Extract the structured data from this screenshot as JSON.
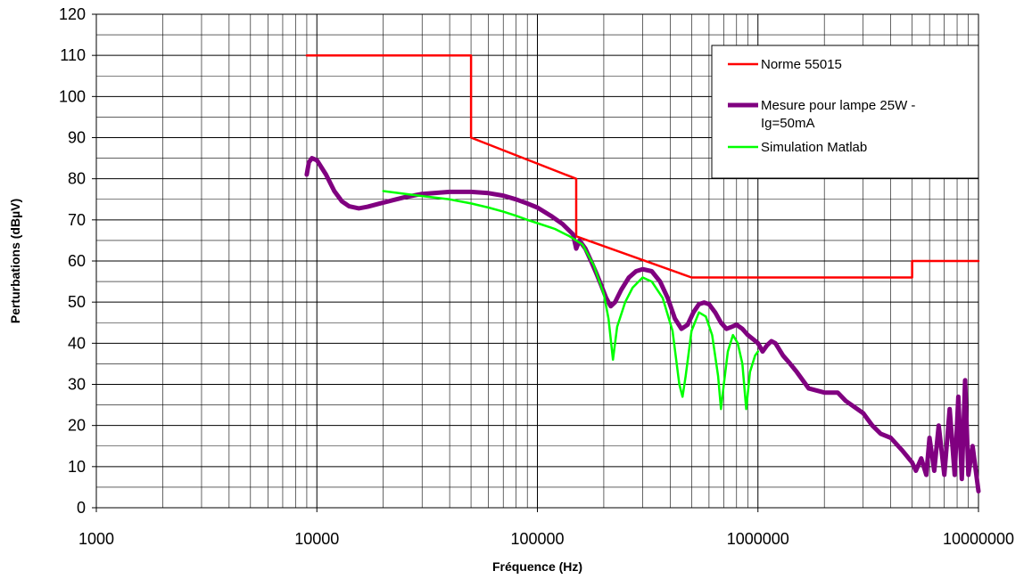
{
  "chart_data": {
    "type": "line",
    "xlabel": "Fréquence (Hz)",
    "ylabel": "Perturbations (dBµV)",
    "x_scale": "log",
    "xlim": [
      1000,
      10000000
    ],
    "ylim": [
      0,
      120
    ],
    "grid": true,
    "legend_position": "top-right",
    "x_ticks": [
      "1000",
      "10000",
      "100000",
      "1000000",
      "10000000"
    ],
    "y_ticks": [
      "0",
      "10",
      "20",
      "30",
      "40",
      "50",
      "60",
      "70",
      "80",
      "90",
      "100",
      "110",
      "120"
    ],
    "series": [
      {
        "name": "Norme 55015",
        "color": "#ff0000",
        "legend_lines": [
          "Norme 55015"
        ],
        "points": [
          [
            9000,
            110
          ],
          [
            50000,
            110
          ],
          [
            50000,
            90
          ],
          [
            150000,
            80
          ],
          [
            150000,
            66
          ],
          [
            500000,
            56
          ],
          [
            5000000,
            56
          ],
          [
            5000000,
            60
          ],
          [
            10000000,
            60
          ]
        ]
      },
      {
        "name": "Mesure pour lampe 25W - Ig=50mA",
        "color": "#800080",
        "legend_lines": [
          "Mesure pour lampe 25W -",
          "Ig=50mA"
        ],
        "points": [
          [
            9000,
            81
          ],
          [
            9200,
            84
          ],
          [
            9500,
            85
          ],
          [
            10000,
            84.5
          ],
          [
            11000,
            81
          ],
          [
            12000,
            77
          ],
          [
            13000,
            74.5
          ],
          [
            14000,
            73.3
          ],
          [
            15500,
            72.8
          ],
          [
            17000,
            73.2
          ],
          [
            20000,
            74.2
          ],
          [
            25000,
            75.5
          ],
          [
            30000,
            76.3
          ],
          [
            40000,
            76.8
          ],
          [
            50000,
            76.8
          ],
          [
            60000,
            76.5
          ],
          [
            70000,
            75.9
          ],
          [
            80000,
            75
          ],
          [
            90000,
            74
          ],
          [
            100000,
            73
          ],
          [
            115000,
            71
          ],
          [
            130000,
            69
          ],
          [
            145000,
            66.5
          ],
          [
            150000,
            63
          ],
          [
            155000,
            65
          ],
          [
            165000,
            63
          ],
          [
            175000,
            60
          ],
          [
            185000,
            57
          ],
          [
            195000,
            54
          ],
          [
            205000,
            51
          ],
          [
            215000,
            49
          ],
          [
            225000,
            50
          ],
          [
            240000,
            53
          ],
          [
            260000,
            56
          ],
          [
            280000,
            57.5
          ],
          [
            300000,
            58
          ],
          [
            330000,
            57.5
          ],
          [
            360000,
            55
          ],
          [
            390000,
            51
          ],
          [
            420000,
            46
          ],
          [
            450000,
            43.5
          ],
          [
            480000,
            44.5
          ],
          [
            510000,
            47.5
          ],
          [
            540000,
            49.5
          ],
          [
            570000,
            49.9
          ],
          [
            600000,
            49.5
          ],
          [
            640000,
            47.5
          ],
          [
            680000,
            45
          ],
          [
            720000,
            43.5
          ],
          [
            760000,
            44
          ],
          [
            800000,
            44.5
          ],
          [
            850000,
            43.5
          ],
          [
            900000,
            42
          ],
          [
            950000,
            41
          ],
          [
            1000000,
            40
          ],
          [
            1050000,
            38
          ],
          [
            1100000,
            39.5
          ],
          [
            1150000,
            40.5
          ],
          [
            1200000,
            40
          ],
          [
            1300000,
            37
          ],
          [
            1400000,
            35
          ],
          [
            1500000,
            33
          ],
          [
            1700000,
            29
          ],
          [
            2000000,
            28
          ],
          [
            2300000,
            28
          ],
          [
            2500000,
            26
          ],
          [
            3000000,
            23
          ],
          [
            3300000,
            20
          ],
          [
            3600000,
            18
          ],
          [
            4000000,
            17
          ],
          [
            4500000,
            14
          ],
          [
            5000000,
            11
          ],
          [
            5200000,
            9
          ],
          [
            5500000,
            12
          ],
          [
            5800000,
            8
          ],
          [
            6000000,
            17
          ],
          [
            6300000,
            9
          ],
          [
            6600000,
            20
          ],
          [
            7000000,
            8
          ],
          [
            7400000,
            24
          ],
          [
            7800000,
            8
          ],
          [
            8100000,
            27
          ],
          [
            8400000,
            7
          ],
          [
            8700000,
            31
          ],
          [
            9000000,
            8
          ],
          [
            9400000,
            15
          ],
          [
            10000000,
            4
          ]
        ]
      },
      {
        "name": "Simulation Matlab",
        "color": "#00ff00",
        "legend_lines": [
          "Simulation Matlab"
        ],
        "points": [
          [
            20000,
            77
          ],
          [
            30000,
            75.8
          ],
          [
            40000,
            75
          ],
          [
            50000,
            74
          ],
          [
            60000,
            73
          ],
          [
            70000,
            72
          ],
          [
            80000,
            71
          ],
          [
            90000,
            70
          ],
          [
            100000,
            69.2
          ],
          [
            120000,
            67.8
          ],
          [
            140000,
            66
          ],
          [
            160000,
            64
          ],
          [
            180000,
            59
          ],
          [
            200000,
            52
          ],
          [
            210000,
            46
          ],
          [
            220000,
            36
          ],
          [
            230000,
            44
          ],
          [
            250000,
            50
          ],
          [
            270000,
            53.5
          ],
          [
            300000,
            56
          ],
          [
            330000,
            55
          ],
          [
            370000,
            51
          ],
          [
            410000,
            43
          ],
          [
            440000,
            30
          ],
          [
            455000,
            27
          ],
          [
            470000,
            32
          ],
          [
            500000,
            43
          ],
          [
            540000,
            47.5
          ],
          [
            580000,
            46.5
          ],
          [
            620000,
            42
          ],
          [
            660000,
            32
          ],
          [
            680000,
            24
          ],
          [
            700000,
            30
          ],
          [
            730000,
            38
          ],
          [
            770000,
            42
          ],
          [
            810000,
            40
          ],
          [
            850000,
            35
          ],
          [
            885000,
            24
          ],
          [
            920000,
            33
          ],
          [
            970000,
            37
          ],
          [
            1000000,
            38
          ]
        ]
      }
    ]
  }
}
